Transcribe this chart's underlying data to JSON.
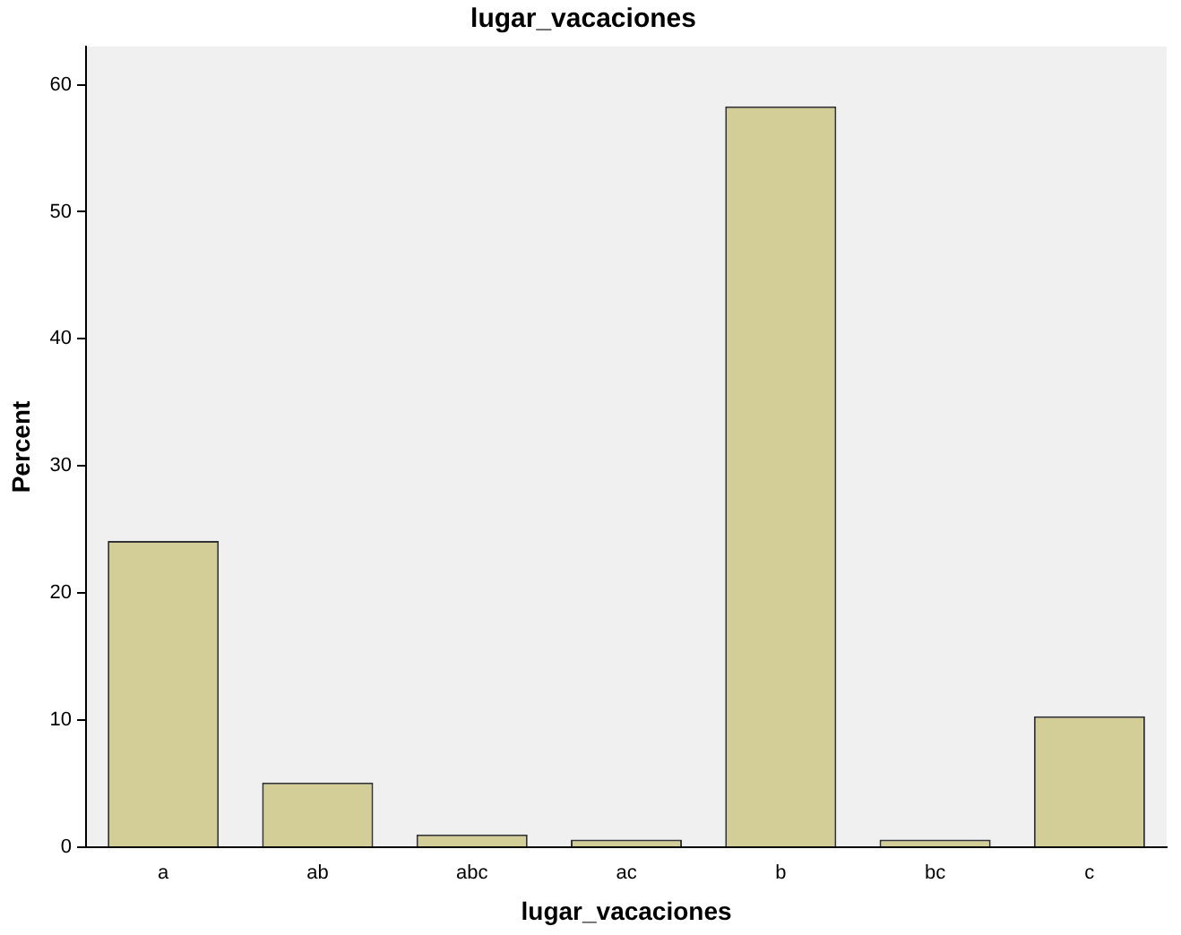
{
  "chart_data": {
    "type": "bar",
    "title": "lugar_vacaciones",
    "xlabel": "lugar_vacaciones",
    "ylabel": "Percent",
    "categories": [
      "a",
      "ab",
      "abc",
      "ac",
      "b",
      "bc",
      "c"
    ],
    "values": [
      24.1,
      5.1,
      1.0,
      0.6,
      58.3,
      0.6,
      10.3
    ],
    "color": "#d3ce98",
    "ylim": [
      0,
      63
    ],
    "yticks": [
      0,
      10,
      20,
      30,
      40,
      50,
      60
    ],
    "grid": false,
    "legend": false
  }
}
